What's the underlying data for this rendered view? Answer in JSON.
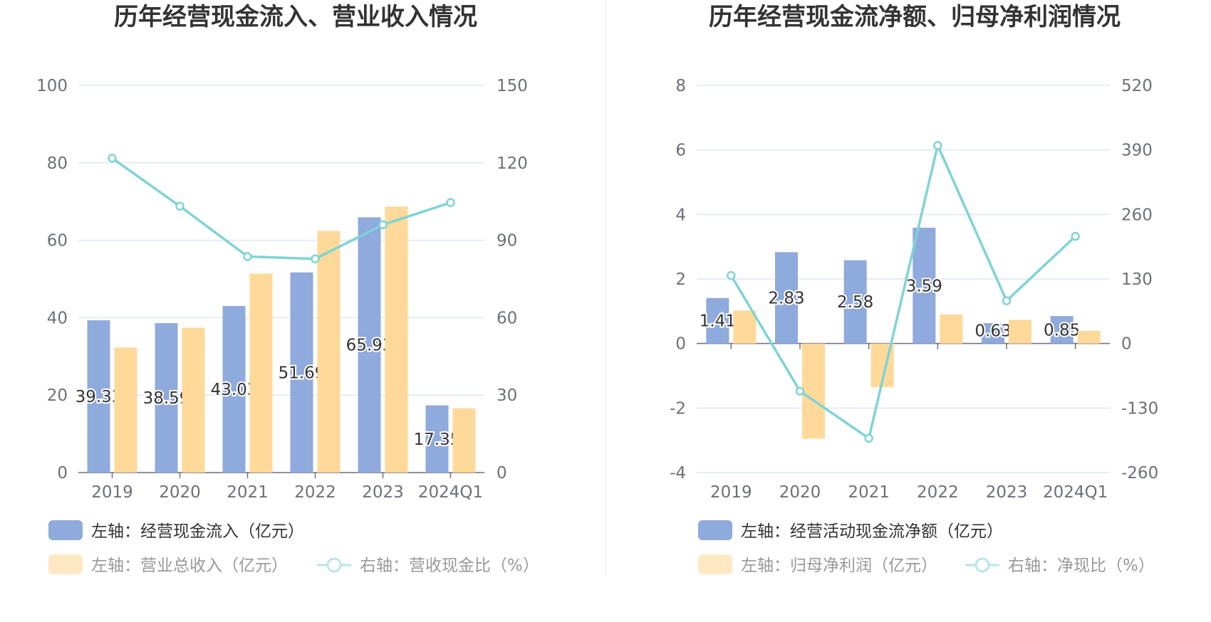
{
  "colors": {
    "bar_blue": "#8faadc",
    "bar_orange": "#ffd999",
    "line_cyan": "#7fd3d6",
    "line_cyan_light": "#b8e6e8",
    "legend_orange_light": "#ffe9c4"
  },
  "chart_data": [
    {
      "type": "bar",
      "title": "历年经营现金流入、营业收入情况",
      "categories": [
        "2019",
        "2020",
        "2021",
        "2022",
        "2023",
        "2024Q1"
      ],
      "left_axis": {
        "min": 0,
        "max": 100,
        "ticks": [
          "0",
          "20",
          "40",
          "60",
          "80",
          "100"
        ]
      },
      "right_axis": {
        "min": 0,
        "max": 150,
        "ticks": [
          "0",
          "30",
          "60",
          "90",
          "120",
          "150"
        ]
      },
      "series": [
        {
          "name": "左轴：经营现金流入（亿元）",
          "axis": "left",
          "kind": "bar",
          "color": "#8faadc",
          "values": [
            39.33,
            38.59,
            43.03,
            51.69,
            65.93,
            17.35
          ],
          "labels": [
            "39.33",
            "38.59",
            "43.03",
            "51.69",
            "65.93",
            "17.35"
          ]
        },
        {
          "name": "左轴：营业总收入（亿元）",
          "axis": "left",
          "kind": "bar",
          "color": "#ffd999",
          "values": [
            32.3,
            37.4,
            51.4,
            62.4,
            68.7,
            16.6
          ]
        },
        {
          "name": "右轴：营收现金比（%）",
          "axis": "right",
          "kind": "line",
          "color": "#7fd3d6",
          "values": [
            121.8,
            103.2,
            83.7,
            82.8,
            96.0,
            104.6
          ]
        }
      ],
      "legend": [
        "左轴：经营现金流入（亿元）",
        "左轴：营业总收入（亿元）",
        "右轴：营收现金比（%）"
      ]
    },
    {
      "type": "bar",
      "title": "历年经营现金流净额、归母净利润情况",
      "categories": [
        "2019",
        "2020",
        "2021",
        "2022",
        "2023",
        "2024Q1"
      ],
      "left_axis": {
        "min": -4,
        "max": 8,
        "ticks": [
          "-4",
          "-2",
          "0",
          "2",
          "4",
          "6",
          "8"
        ]
      },
      "right_axis": {
        "min": -260,
        "max": 520,
        "ticks": [
          "-260",
          "-130",
          "0",
          "130",
          "260",
          "390",
          "520"
        ]
      },
      "series": [
        {
          "name": "左轴：经营活动现金流净额（亿元）",
          "axis": "left",
          "kind": "bar",
          "color": "#8faadc",
          "values": [
            1.41,
            2.83,
            2.58,
            3.59,
            0.63,
            0.85
          ],
          "labels": [
            "1.41",
            "2.83",
            "2.58",
            "3.59",
            "0.63",
            "0.85"
          ]
        },
        {
          "name": "左轴：归母净利润（亿元）",
          "axis": "left",
          "kind": "bar",
          "color": "#ffd999",
          "values": [
            1.02,
            -2.95,
            -1.35,
            0.9,
            0.73,
            0.39
          ]
        },
        {
          "name": "右轴：净现比（%）",
          "axis": "right",
          "kind": "line",
          "color": "#7fd3d6",
          "values": [
            137,
            -96,
            -191,
            399,
            86,
            216
          ]
        }
      ],
      "legend": [
        "左轴：经营活动现金流净额（亿元）",
        "左轴：归母净利润（亿元）",
        "右轴：净现比（%）"
      ]
    }
  ]
}
